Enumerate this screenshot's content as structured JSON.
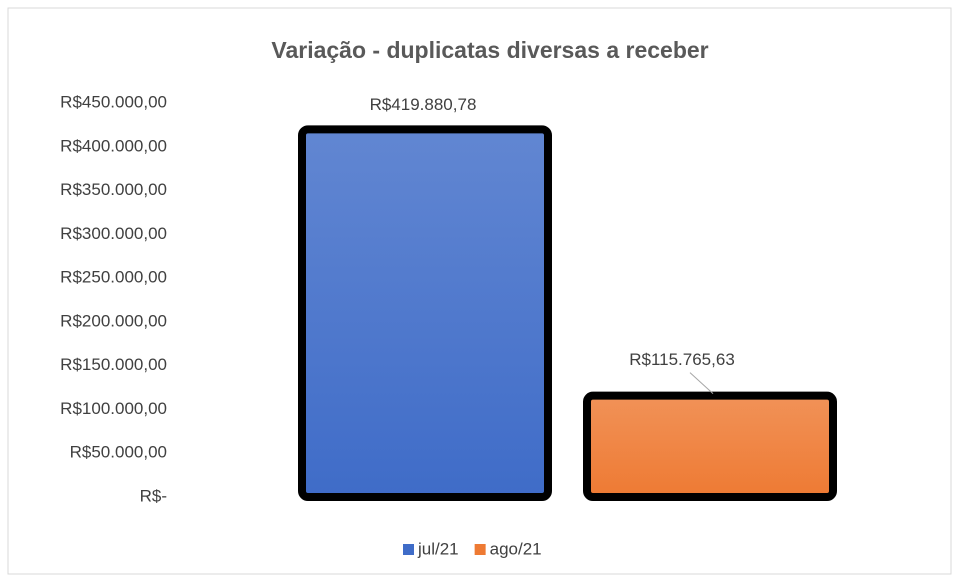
{
  "chart_data": {
    "type": "bar",
    "title": "Variação - duplicatas diversas a receber",
    "series": [
      {
        "name": "jul/21",
        "color": "#3f6cc8",
        "values": [
          419880.78
        ],
        "value_labels": [
          "R$419.880,78"
        ]
      },
      {
        "name": "ago/21",
        "color": "#ee7a33",
        "values": [
          115765.63
        ],
        "value_labels": [
          "R$115.765,63"
        ]
      }
    ],
    "ylim": [
      0,
      450000
    ],
    "yticks": [
      {
        "value": 0,
        "label": "R$-"
      },
      {
        "value": 50000,
        "label": "R$50.000,00"
      },
      {
        "value": 100000,
        "label": "R$100.000,00"
      },
      {
        "value": 150000,
        "label": "R$150.000,00"
      },
      {
        "value": 200000,
        "label": "R$200.000,00"
      },
      {
        "value": 250000,
        "label": "R$250.000,00"
      },
      {
        "value": 300000,
        "label": "R$300.000,00"
      },
      {
        "value": 350000,
        "label": "R$350.000,00"
      },
      {
        "value": 400000,
        "label": "R$400.000,00"
      },
      {
        "value": 450000,
        "label": "R$450.000,00"
      }
    ],
    "legend": "bottom"
  }
}
